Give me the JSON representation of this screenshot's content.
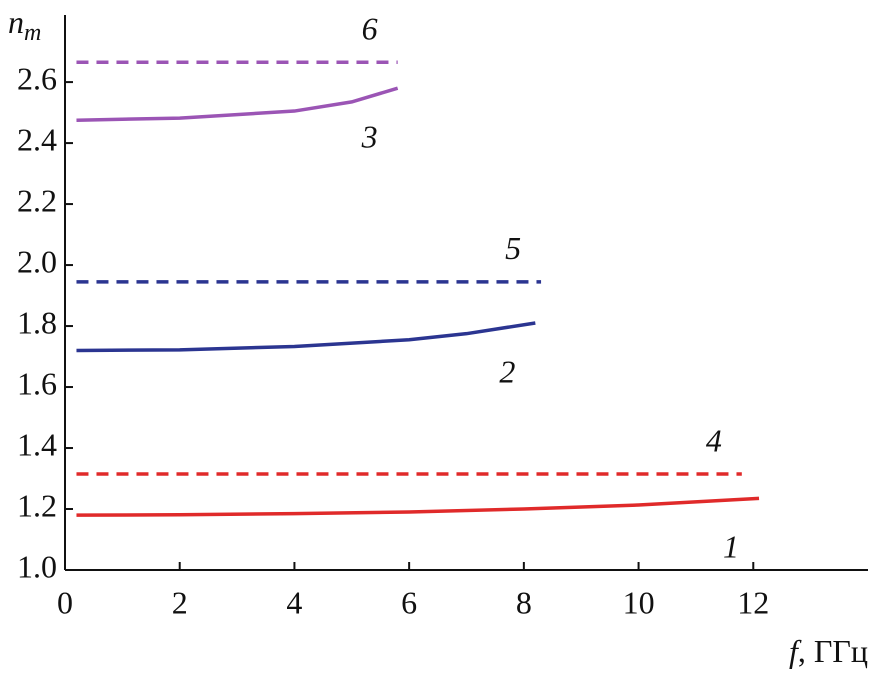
{
  "chart_data": {
    "type": "line",
    "ylabel": {
      "base": "n",
      "sub": "m"
    },
    "xlabel": [
      "f",
      ", ГГц"
    ],
    "xlim": [
      0,
      14
    ],
    "xticks": [
      0,
      2,
      4,
      6,
      8,
      10,
      12
    ],
    "ylim": [
      1.0,
      2.82
    ],
    "yticks": [
      {
        "value": 1.0,
        "label": "1.0"
      },
      1.2,
      1.4,
      1.6,
      1.8,
      {
        "value": 2.0,
        "label": "2.0"
      },
      2.2,
      2.4,
      2.6
    ],
    "series": [
      {
        "name": "1",
        "color": "#e02a2a",
        "dashed": false,
        "x": [
          0.2,
          2,
          4,
          6,
          8,
          10,
          12.1
        ],
        "values": [
          1.18,
          1.181,
          1.185,
          1.19,
          1.2,
          1.213,
          1.235
        ]
      },
      {
        "name": "2",
        "color": "#2b3591",
        "dashed": false,
        "x": [
          0.2,
          2,
          4,
          6,
          7,
          8.2
        ],
        "values": [
          1.72,
          1.722,
          1.733,
          1.755,
          1.775,
          1.81
        ]
      },
      {
        "name": "3",
        "color": "#9b55b5",
        "dashed": false,
        "x": [
          0.2,
          2,
          4,
          5,
          5.8
        ],
        "values": [
          2.475,
          2.482,
          2.505,
          2.535,
          2.58
        ]
      },
      {
        "name": "4",
        "color": "#e02a2a",
        "dashed": true,
        "x": [
          0.2,
          11.8
        ],
        "values": [
          1.315,
          1.315
        ]
      },
      {
        "name": "5",
        "color": "#2b3591",
        "dashed": true,
        "x": [
          0.2,
          8.3
        ],
        "values": [
          1.945,
          1.945
        ]
      },
      {
        "name": "6",
        "color": "#9b55b5",
        "dashed": true,
        "x": [
          0.2,
          5.8
        ],
        "values": [
          2.665,
          2.665
        ]
      }
    ]
  }
}
